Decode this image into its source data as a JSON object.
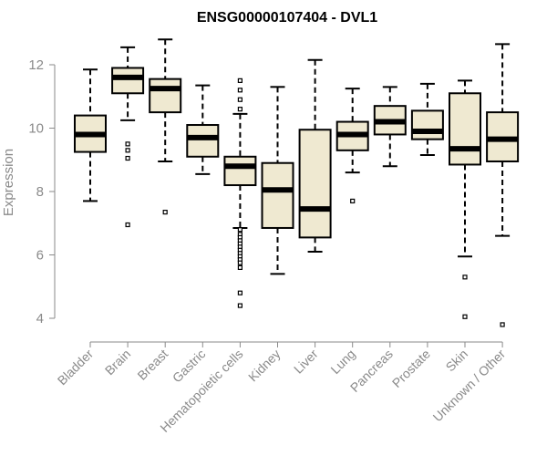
{
  "chart_data": {
    "type": "box",
    "title": "ENSG00000107404 - DVL1",
    "xlabel": "",
    "ylabel": "Expression",
    "ylim": [
      3.6,
      13.2
    ],
    "yticks": [
      4,
      6,
      8,
      10,
      12
    ],
    "categories": [
      "Bladder",
      "Brain",
      "Breast",
      "Gastric",
      "Hematopoietic cells",
      "Kidney",
      "Liver",
      "Lung",
      "Pancreas",
      "Prostate",
      "Skin",
      "Unknown / Other"
    ],
    "boxes": [
      {
        "category": "Bladder",
        "whisker_low": 7.7,
        "q1": 9.25,
        "median": 9.8,
        "q3": 10.4,
        "whisker_high": 11.85,
        "outliers": []
      },
      {
        "category": "Brain",
        "whisker_low": 10.25,
        "q1": 11.1,
        "median": 11.6,
        "q3": 11.9,
        "whisker_high": 12.55,
        "outliers": [
          9.5,
          9.3,
          9.05,
          6.95
        ]
      },
      {
        "category": "Breast",
        "whisker_low": 8.95,
        "q1": 10.5,
        "median": 11.25,
        "q3": 11.55,
        "whisker_high": 12.8,
        "outliers": [
          7.35
        ]
      },
      {
        "category": "Gastric",
        "whisker_low": 8.55,
        "q1": 9.1,
        "median": 9.7,
        "q3": 10.1,
        "whisker_high": 11.35,
        "outliers": []
      },
      {
        "category": "Hematopoietic cells",
        "whisker_low": 6.85,
        "q1": 8.2,
        "median": 8.8,
        "q3": 9.1,
        "whisker_high": 10.45,
        "outliers": [
          11.5,
          11.2,
          10.9,
          10.6,
          6.8,
          6.65,
          6.55,
          6.45,
          6.35,
          6.25,
          6.15,
          6.05,
          5.95,
          5.85,
          5.75,
          5.6,
          4.8,
          4.4
        ]
      },
      {
        "category": "Kidney",
        "whisker_low": 5.4,
        "q1": 6.85,
        "median": 8.05,
        "q3": 8.9,
        "whisker_high": 11.3,
        "outliers": []
      },
      {
        "category": "Liver",
        "whisker_low": 6.1,
        "q1": 6.55,
        "median": 7.45,
        "q3": 9.95,
        "whisker_high": 12.15,
        "outliers": []
      },
      {
        "category": "Lung",
        "whisker_low": 8.6,
        "q1": 9.3,
        "median": 9.8,
        "q3": 10.2,
        "whisker_high": 11.25,
        "outliers": [
          7.7
        ]
      },
      {
        "category": "Pancreas",
        "whisker_low": 8.8,
        "q1": 9.8,
        "median": 10.2,
        "q3": 10.7,
        "whisker_high": 11.3,
        "outliers": []
      },
      {
        "category": "Prostate",
        "whisker_low": 9.15,
        "q1": 9.65,
        "median": 9.9,
        "q3": 10.55,
        "whisker_high": 11.4,
        "outliers": []
      },
      {
        "category": "Skin",
        "whisker_low": 5.95,
        "q1": 8.85,
        "median": 9.35,
        "q3": 11.1,
        "whisker_high": 11.5,
        "outliers": [
          5.3,
          4.05
        ]
      },
      {
        "category": "Unknown / Other",
        "whisker_low": 6.6,
        "q1": 8.95,
        "median": 9.65,
        "q3": 10.5,
        "whisker_high": 12.65,
        "outliers": [
          3.8
        ]
      }
    ],
    "colors": {
      "box_fill": "#efe9d1",
      "stroke": "#000000",
      "axis_text": "#8a8a8a",
      "axis_line": "#8a8a8a"
    },
    "grid": false,
    "legend": "none"
  }
}
